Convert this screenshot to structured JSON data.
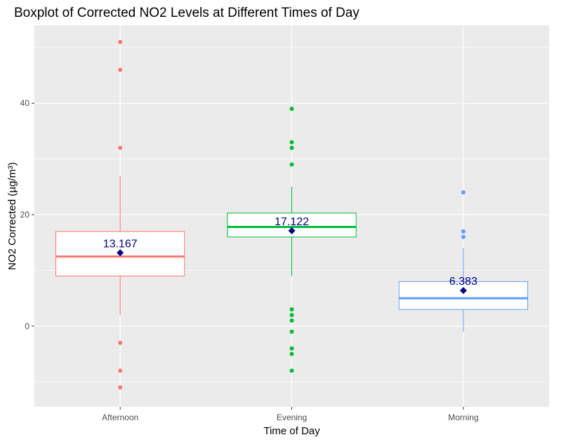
{
  "chart_data": {
    "type": "boxplot",
    "title": "Boxplot of Corrected NO2 Levels at Different Times of Day",
    "xlabel": "Time of Day",
    "ylabel": "NO2 Corrected (µg/m³)",
    "categories": [
      "Afternoon",
      "Evening",
      "Morning"
    ],
    "ylim": [
      -14.5,
      54
    ],
    "y_ticks": [
      0,
      20,
      40
    ],
    "grid": true,
    "mean_color": "#000080",
    "boxes": [
      {
        "category": "Afternoon",
        "color": "#F8766D",
        "whisker_low": 2,
        "q1": 9,
        "median": 12.5,
        "q3": 17,
        "whisker_high": 27,
        "mean": 13.167,
        "mean_label": "13.167",
        "outliers": [
          51,
          46,
          32,
          -3,
          -8,
          -11
        ]
      },
      {
        "category": "Evening",
        "color": "#00BA38",
        "whisker_low": 9,
        "q1": 16,
        "median": 17.8,
        "q3": 20.3,
        "whisker_high": 25,
        "mean": 17.122,
        "mean_label": "17.122",
        "outliers": [
          39,
          33,
          32,
          29,
          3,
          2,
          1,
          -1,
          -4,
          -5,
          -8
        ]
      },
      {
        "category": "Morning",
        "color": "#619CFF",
        "whisker_low": -1,
        "q1": 3,
        "median": 5,
        "q3": 8,
        "whisker_high": 14,
        "mean": 6.383,
        "mean_label": "6.383",
        "outliers": [
          24,
          17,
          16
        ]
      }
    ]
  }
}
